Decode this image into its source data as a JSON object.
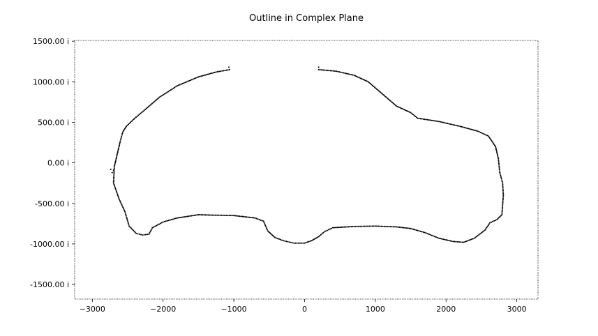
{
  "chart_data": {
    "type": "scatter",
    "title": "Outline in Complex Plane",
    "xlabel": "",
    "ylabel": "",
    "xlim": [
      -3250,
      3300
    ],
    "ylim": [
      -1680,
      1510
    ],
    "x_ticks": [
      -3000,
      -2000,
      -1000,
      0,
      1000,
      2000,
      3000
    ],
    "x_tick_labels": [
      "−3000",
      "−2000",
      "−1000",
      "0",
      "1000",
      "2000",
      "3000"
    ],
    "y_ticks": [
      1500,
      1000,
      500,
      0,
      -500,
      -1000,
      -1500
    ],
    "y_tick_labels": [
      "1500.00 i",
      "1000.00 i",
      "500.00 i",
      "0.00 i",
      "-500.00 i",
      "-1000.00 i",
      "-1500.00 i"
    ],
    "grid": false,
    "marker_color": "#000000",
    "outline_path": [
      [
        -1060,
        1150
      ],
      [
        -1250,
        1120
      ],
      [
        -1500,
        1060
      ],
      [
        -1800,
        950
      ],
      [
        -2050,
        810
      ],
      [
        -2250,
        660
      ],
      [
        -2400,
        550
      ],
      [
        -2520,
        450
      ],
      [
        -2570,
        380
      ],
      [
        -2610,
        250
      ],
      [
        -2650,
        100
      ],
      [
        -2690,
        -50
      ],
      [
        -2700,
        -250
      ],
      [
        -2620,
        -450
      ],
      [
        -2540,
        -600
      ],
      [
        -2480,
        -780
      ],
      [
        -2380,
        -870
      ],
      [
        -2290,
        -890
      ],
      [
        -2200,
        -880
      ],
      [
        -2150,
        -800
      ],
      [
        -2000,
        -730
      ],
      [
        -1800,
        -680
      ],
      [
        -1500,
        -640
      ],
      [
        -1300,
        -645
      ],
      [
        -1000,
        -650
      ],
      [
        -700,
        -680
      ],
      [
        -580,
        -720
      ],
      [
        -520,
        -840
      ],
      [
        -420,
        -920
      ],
      [
        -300,
        -960
      ],
      [
        -150,
        -990
      ],
      [
        0,
        -990
      ],
      [
        100,
        -960
      ],
      [
        200,
        -910
      ],
      [
        280,
        -850
      ],
      [
        400,
        -800
      ],
      [
        700,
        -785
      ],
      [
        1000,
        -780
      ],
      [
        1300,
        -790
      ],
      [
        1500,
        -810
      ],
      [
        1700,
        -860
      ],
      [
        1900,
        -930
      ],
      [
        2100,
        -970
      ],
      [
        2250,
        -980
      ],
      [
        2400,
        -930
      ],
      [
        2550,
        -830
      ],
      [
        2620,
        -740
      ],
      [
        2720,
        -700
      ],
      [
        2790,
        -640
      ],
      [
        2810,
        -400
      ],
      [
        2800,
        -250
      ],
      [
        2760,
        -120
      ],
      [
        2740,
        50
      ],
      [
        2700,
        200
      ],
      [
        2600,
        330
      ],
      [
        2450,
        390
      ],
      [
        2200,
        450
      ],
      [
        1900,
        510
      ],
      [
        1600,
        550
      ],
      [
        1500,
        620
      ],
      [
        1300,
        700
      ],
      [
        1100,
        850
      ],
      [
        900,
        1000
      ],
      [
        700,
        1080
      ],
      [
        450,
        1130
      ],
      [
        200,
        1150
      ]
    ],
    "loose_points": [
      [
        -1070,
        1180
      ],
      [
        -2740,
        -80
      ],
      [
        -2720,
        -120
      ],
      [
        -2700,
        -90
      ],
      [
        200,
        1180
      ]
    ]
  }
}
